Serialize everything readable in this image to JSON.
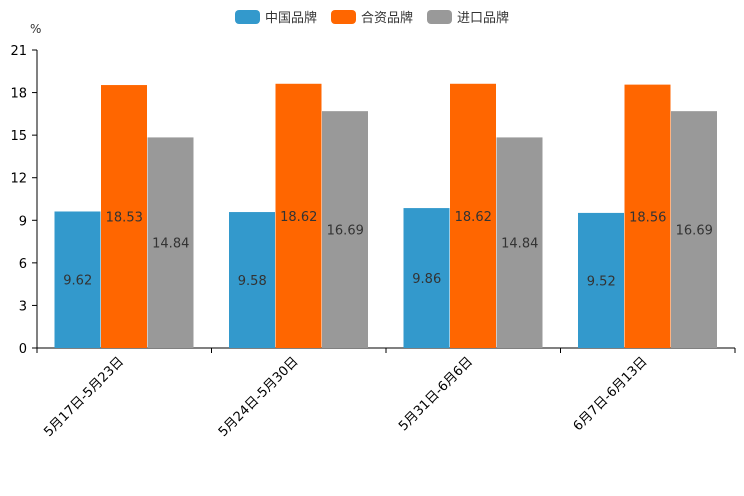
{
  "chart_data": {
    "type": "bar",
    "unit": "%",
    "categories": [
      "5月17日-5月23日",
      "5月24日-5月30日",
      "5月31日-6月6日",
      "6月7日-6月13日"
    ],
    "series": [
      {
        "name": "中国品牌",
        "color": "#3399cc",
        "values": [
          9.62,
          9.58,
          9.86,
          9.52
        ],
        "labels": [
          "9.62",
          "9.58",
          "9.86",
          "9.52"
        ]
      },
      {
        "name": "合资品牌",
        "color": "#ff6600",
        "values": [
          18.53,
          18.62,
          18.62,
          18.56
        ],
        "labels": [
          "18.53",
          "18.62",
          "18.62",
          "18.56"
        ]
      },
      {
        "name": "进口品牌",
        "color": "#999999",
        "values": [
          14.84,
          16.69,
          14.84,
          16.69
        ],
        "labels": [
          "14.84",
          "16.69",
          "14.84",
          "16.69"
        ]
      }
    ],
    "ylim": [
      0,
      21
    ],
    "yticks": [
      "0",
      "3",
      "6",
      "9",
      "12",
      "15",
      "18",
      "21"
    ],
    "legend_position": "top-center"
  }
}
